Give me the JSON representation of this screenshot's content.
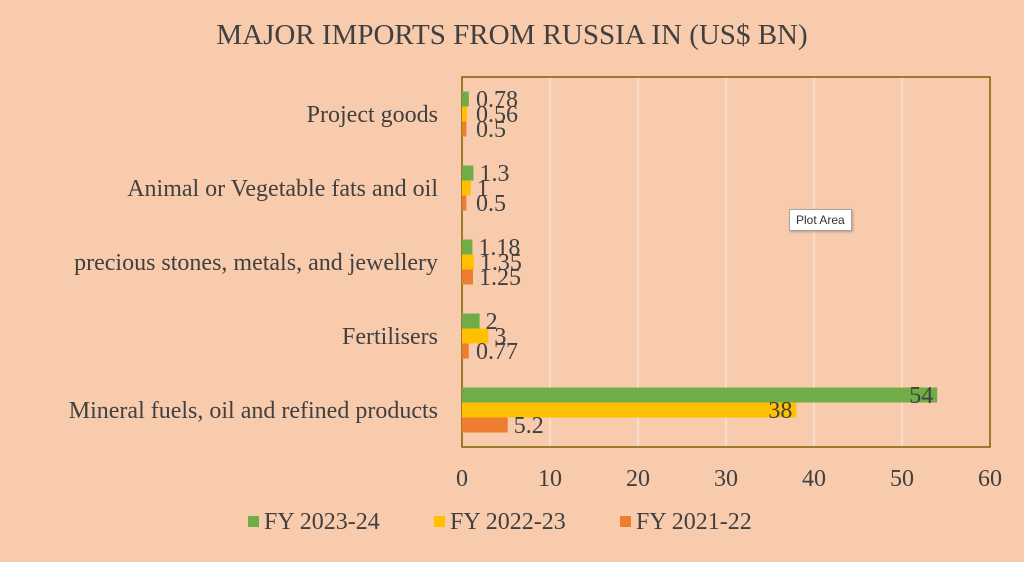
{
  "chart_data": {
    "type": "bar",
    "orientation": "horizontal",
    "title": "MAJOR IMPORTS FROM RUSSIA IN (US$ BN)",
    "categories": [
      "Project goods",
      "Animal or Vegetable fats and oil",
      "precious stones, metals, and jewellery",
      "Fertilisers",
      "Mineral fuels, oil and refined products"
    ],
    "series": [
      {
        "name": "FY 2023-24",
        "color": "#70AD47",
        "values": [
          0.78,
          1.3,
          1.18,
          2,
          54
        ],
        "labels": [
          "0.78",
          "1.3",
          "1.18",
          "2",
          "54"
        ]
      },
      {
        "name": "FY 2022-23",
        "color": "#FFC000",
        "values": [
          0.56,
          1,
          1.35,
          3,
          38
        ],
        "labels": [
          "0.56",
          "1",
          "1.35",
          "3",
          "38"
        ]
      },
      {
        "name": "FY 2021-22",
        "color": "#ED7D31",
        "values": [
          0.5,
          0.5,
          1.25,
          0.77,
          5.2
        ],
        "labels": [
          "0.5",
          "0.5",
          "1.25",
          "0.77",
          "5.2"
        ]
      }
    ],
    "xlim": [
      0,
      60
    ],
    "xticks": [
      "0",
      "10",
      "20",
      "30",
      "40",
      "50",
      "60"
    ],
    "grid": true,
    "legend_position": "bottom",
    "plot_border_color": "#7F6000",
    "gridline_color": "#F2F2F2"
  },
  "tooltip": {
    "text": "Plot Area"
  }
}
